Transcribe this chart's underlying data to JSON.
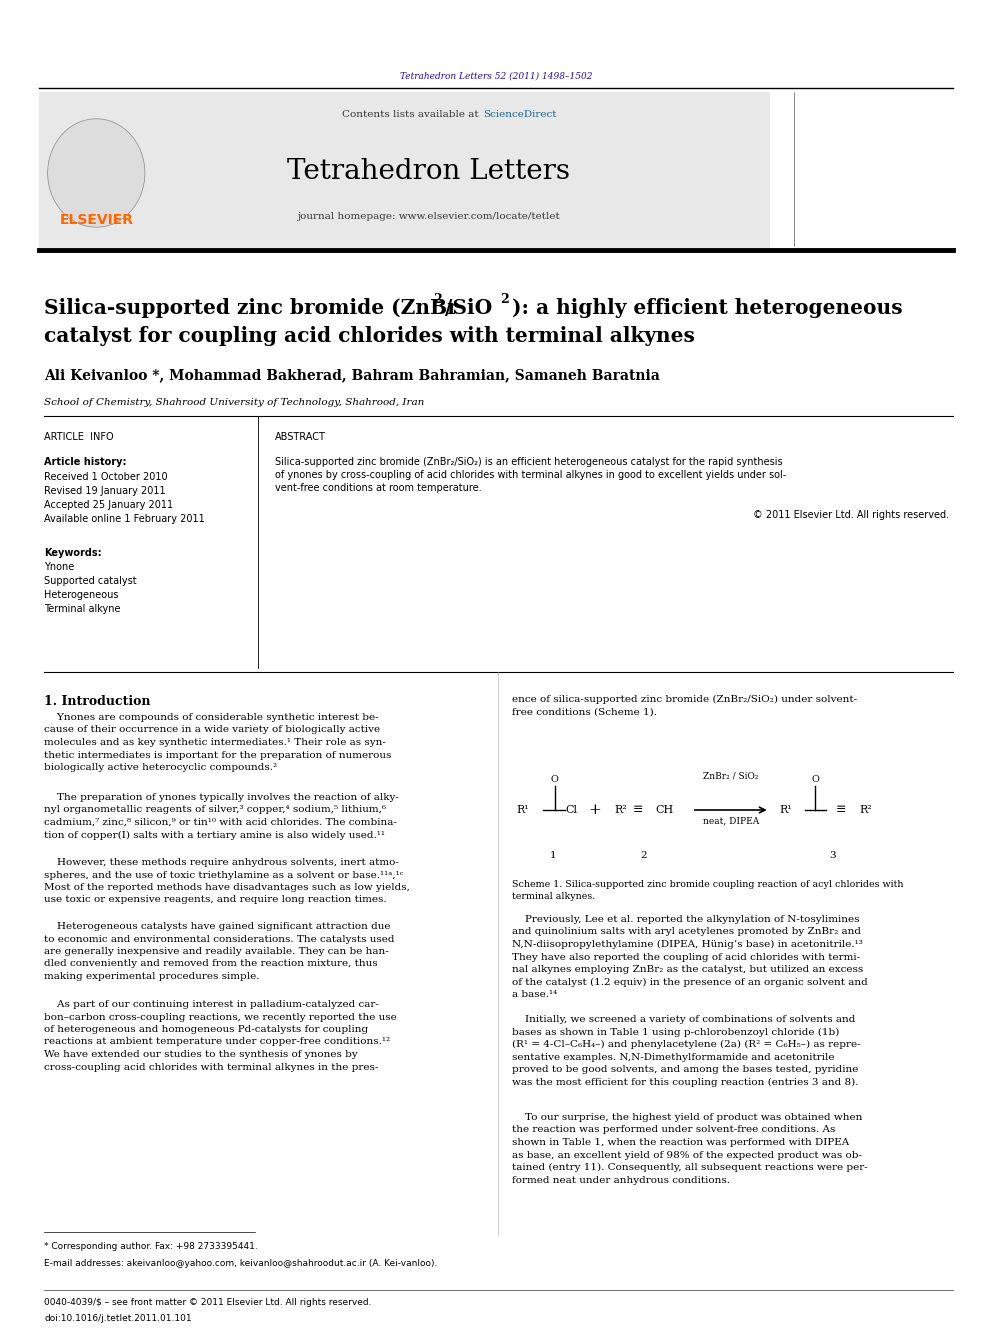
{
  "page_width": 9.92,
  "page_height": 13.23,
  "background_color": "#ffffff",
  "journal_ref_text": "Tetrahedron Letters 52 (2011) 1498–1502",
  "journal_ref_color": "#1a0dab",
  "contents_text": "Contents lists available at ",
  "science_direct_text": "ScienceDirect",
  "science_direct_color": "#1a6496",
  "journal_title": "Tetrahedron Letters",
  "journal_homepage": "journal homepage: www.elsevier.com/locate/tetlet",
  "header_bg_color": "#e8e8e8",
  "paper_title_line1": "Silica-supported zinc bromide (ZnBr",
  "paper_title_sub1": "2",
  "paper_title_mid": "/SiO",
  "paper_title_sub2": "2",
  "paper_title_end": "): a highly efficient heterogeneous",
  "paper_title_line2": "catalyst for coupling acid chlorides with terminal alkynes",
  "authors": "Ali Keivanloo *, Mohammad Bakherad, Bahram Bahramian, Samaneh Baratnia",
  "affiliation": "School of Chemistry, Shahrood University of Technology, Shahrood, Iran",
  "article_info_label": "ARTICLE  INFO",
  "abstract_label": "ABSTRACT",
  "article_history_label": "Article history:",
  "received1": "Received 1 October 2010",
  "revised": "Revised 19 January 2011",
  "accepted": "Accepted 25 January 2011",
  "available": "Available online 1 February 2011",
  "keywords_label": "Keywords:",
  "keyword1": "Ynone",
  "keyword2": "Supported catalyst",
  "keyword3": "Heterogeneous",
  "keyword4": "Terminal alkyne",
  "abstract_text_l1": "Silica-supported zinc bromide (ZnBr₂/SiO₂) is an efficient heterogeneous catalyst for the rapid synthesis",
  "abstract_text_l2": "of ynones by cross-coupling of acid chlorides with terminal alkynes in good to excellent yields under sol-",
  "abstract_text_l3": "vent-free conditions at room temperature.",
  "copyright_text": "© 2011 Elsevier Ltd. All rights reserved.",
  "intro_heading": "1. Introduction",
  "scheme_caption": "Scheme 1. Silica-supported zinc bromide coupling reaction of acyl chlorides with\nterminal alkynes.",
  "footnote1": "* Corresponding author. Fax: +98 2733395441.",
  "footnote2": "E-mail addresses: akeivanloo@yahoo.com, keivanloo@shahroodut.ac.ir (A. Kei-vanloo).",
  "footer_text": "0040-4039/$ – see front matter © 2011 Elsevier Ltd. All rights reserved.",
  "footer_doi": "doi:10.1016/j.tetlet.2011.01.101",
  "elsevier_color": "#ff6600",
  "cover_color": "#4a8cb8"
}
